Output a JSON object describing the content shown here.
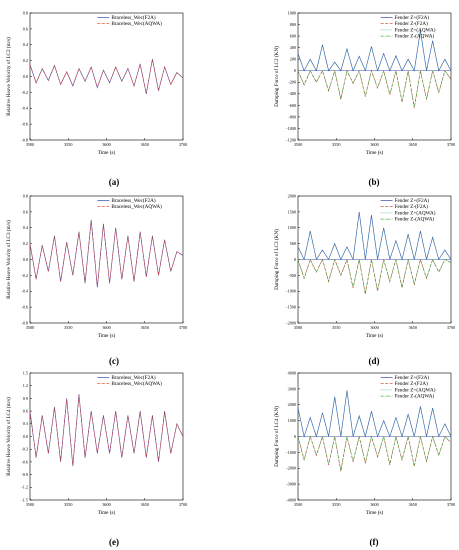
{
  "figure": {
    "panels": [
      {
        "id": "a",
        "label": "(a)"
      },
      {
        "id": "b",
        "label": "(b)"
      },
      {
        "id": "c",
        "label": "(c)"
      },
      {
        "id": "d",
        "label": "(d)"
      },
      {
        "id": "e",
        "label": "(e)"
      },
      {
        "id": "f",
        "label": "(f)"
      }
    ]
  },
  "chart_data": [
    {
      "id": "a",
      "type": "line",
      "xlabel": "Time (s)",
      "ylabel": "Relative Heave Velocity of LC2 (m/s)",
      "xlim": [
        3500,
        3700
      ],
      "ylim": [
        -0.8,
        0.8
      ],
      "xticks": [
        3500,
        3550,
        3600,
        3650,
        3700
      ],
      "yticks": [
        -0.8,
        -0.6,
        -0.4,
        -0.2,
        0.0,
        0.2,
        0.4,
        0.6,
        0.8
      ],
      "ytick_labels": [
        "-0.8",
        "-0.6",
        "-0.4",
        "-0.2",
        "0.0",
        "0.2",
        "0.4",
        "0.6",
        "0.8"
      ],
      "legend_position": "top-right",
      "grid": false,
      "series": [
        {
          "name": "Braceless_Wec(F2A)",
          "color": "#3a4aa8",
          "style": "solid"
        },
        {
          "name": "Braceless_Wec(AQWA)",
          "color": "#d13a3a",
          "style": "dashed"
        }
      ],
      "x": [
        3500,
        3508,
        3516,
        3524,
        3532,
        3540,
        3548,
        3556,
        3564,
        3572,
        3580,
        3588,
        3596,
        3604,
        3612,
        3620,
        3628,
        3636,
        3644,
        3652,
        3660,
        3668,
        3676,
        3684,
        3692,
        3700
      ],
      "y": [
        0.15,
        -0.08,
        0.1,
        -0.05,
        0.14,
        -0.1,
        0.06,
        -0.12,
        0.1,
        -0.06,
        0.12,
        -0.14,
        0.08,
        -0.08,
        0.12,
        -0.06,
        0.1,
        -0.12,
        0.16,
        -0.22,
        0.22,
        -0.18,
        0.12,
        -0.1,
        0.05,
        -0.02
      ]
    },
    {
      "id": "b",
      "type": "line",
      "xlabel": "Time (s)",
      "ylabel": "Damping Force of LC2 (KN)",
      "xlim": [
        3500,
        3700
      ],
      "ylim": [
        -1200,
        1000
      ],
      "xticks": [
        3500,
        3550,
        3600,
        3650,
        3700
      ],
      "yticks": [
        -1200,
        -1000,
        -800,
        -600,
        -400,
        -200,
        0,
        200,
        400,
        600,
        800,
        1000
      ],
      "ytick_labels": [
        "-1200",
        "-1000",
        "-800",
        "-600",
        "-400",
        "-200",
        "0",
        "200",
        "400",
        "600",
        "800",
        "1000"
      ],
      "legend_position": "top-right",
      "grid": false,
      "series": [
        {
          "name": "Fender Z+(F2A)",
          "color": "#3a4aa8",
          "style": "solid"
        },
        {
          "name": "Fender Z-(F2A)",
          "color": "#d13a3a",
          "style": "dashed"
        },
        {
          "name": "Fender Z+(AQWA)",
          "color": "#2aa0a0",
          "style": "dotted"
        },
        {
          "name": "Fender Z-(AQWA)",
          "color": "#3aa83a",
          "style": "dashdot"
        }
      ],
      "x": [
        3500,
        3508,
        3516,
        3524,
        3532,
        3540,
        3548,
        3556,
        3564,
        3572,
        3580,
        3588,
        3596,
        3604,
        3612,
        3620,
        3628,
        3636,
        3644,
        3652,
        3660,
        3668,
        3676,
        3684,
        3692,
        3700
      ],
      "y_pos": [
        300,
        0,
        200,
        0,
        450,
        0,
        150,
        0,
        380,
        0,
        250,
        0,
        420,
        0,
        300,
        0,
        260,
        0,
        200,
        0,
        700,
        0,
        520,
        0,
        200,
        0
      ],
      "y_neg": [
        0,
        -250,
        0,
        -200,
        0,
        -350,
        0,
        -500,
        0,
        -220,
        0,
        -450,
        0,
        -300,
        0,
        -420,
        0,
        -550,
        0,
        -650,
        0,
        -500,
        0,
        -380,
        0,
        -150
      ]
    },
    {
      "id": "c",
      "type": "line",
      "xlabel": "Time (s)",
      "ylabel": "Relative Heave Velocity of LC3 (m/s)",
      "xlim": [
        3500,
        3700
      ],
      "ylim": [
        -0.8,
        0.8
      ],
      "xticks": [
        3500,
        3550,
        3600,
        3650,
        3700
      ],
      "yticks": [
        -0.8,
        -0.6,
        -0.4,
        -0.2,
        0.0,
        0.2,
        0.4,
        0.6,
        0.8
      ],
      "ytick_labels": [
        "-0.8",
        "-0.6",
        "-0.4",
        "-0.2",
        "0.0",
        "0.2",
        "0.4",
        "0.6",
        "0.8"
      ],
      "legend_position": "top-right",
      "grid": false,
      "series": [
        {
          "name": "Braceless_Wec(F2A)",
          "color": "#3a4aa8",
          "style": "solid"
        },
        {
          "name": "Braceless_Wec(AQWA)",
          "color": "#d13a3a",
          "style": "dashed"
        }
      ],
      "x": [
        3500,
        3508,
        3516,
        3524,
        3532,
        3540,
        3548,
        3556,
        3564,
        3572,
        3580,
        3588,
        3596,
        3604,
        3612,
        3620,
        3628,
        3636,
        3644,
        3652,
        3660,
        3668,
        3676,
        3684,
        3692,
        3700
      ],
      "y": [
        0.2,
        -0.25,
        0.18,
        -0.15,
        0.3,
        -0.28,
        0.22,
        -0.2,
        0.35,
        -0.3,
        0.5,
        -0.35,
        0.45,
        -0.3,
        0.4,
        -0.25,
        0.3,
        -0.28,
        0.35,
        -0.22,
        0.3,
        -0.2,
        0.25,
        -0.15,
        0.1,
        0.05
      ]
    },
    {
      "id": "d",
      "type": "line",
      "xlabel": "Time (s)",
      "ylabel": "Damping Force of LC3 (KN)",
      "xlim": [
        3500,
        3700
      ],
      "ylim": [
        -2000,
        2000
      ],
      "xticks": [
        3500,
        3550,
        3600,
        3650,
        3700
      ],
      "yticks": [
        -2000,
        -1500,
        -1000,
        -500,
        0,
        500,
        1000,
        1500,
        2000
      ],
      "ytick_labels": [
        "-2000",
        "-1500",
        "-1000",
        "-500",
        "0",
        "500",
        "1000",
        "1500",
        "2000"
      ],
      "legend_position": "top-right",
      "grid": false,
      "series": [
        {
          "name": "Fender Z+(F2A)",
          "color": "#3a4aa8",
          "style": "solid"
        },
        {
          "name": "Fender Z-(F2A)",
          "color": "#d13a3a",
          "style": "dashed"
        },
        {
          "name": "Fender Z+(AQWA)",
          "color": "#2aa0a0",
          "style": "dotted"
        },
        {
          "name": "Fender Z-(AQWA)",
          "color": "#3aa83a",
          "style": "dashdot"
        }
      ],
      "x": [
        3500,
        3508,
        3516,
        3524,
        3532,
        3540,
        3548,
        3556,
        3564,
        3572,
        3580,
        3588,
        3596,
        3604,
        3612,
        3620,
        3628,
        3636,
        3644,
        3652,
        3660,
        3668,
        3676,
        3684,
        3692,
        3700
      ],
      "y_pos": [
        400,
        0,
        900,
        0,
        300,
        0,
        500,
        0,
        400,
        0,
        1500,
        0,
        1400,
        0,
        1000,
        0,
        600,
        0,
        800,
        0,
        900,
        0,
        700,
        0,
        300,
        0
      ],
      "y_neg": [
        0,
        -600,
        0,
        -400,
        0,
        -700,
        0,
        -500,
        0,
        -900,
        0,
        -1100,
        0,
        -1000,
        0,
        -700,
        0,
        -900,
        0,
        -800,
        0,
        -600,
        0,
        -400,
        0,
        -100
      ]
    },
    {
      "id": "e",
      "type": "line",
      "xlabel": "Time (s)",
      "ylabel": "Relative Heave Velocity of LC4 (m/s)",
      "xlim": [
        3500,
        3700
      ],
      "ylim": [
        -1.5,
        1.5
      ],
      "xticks": [
        3500,
        3550,
        3600,
        3650,
        3700
      ],
      "yticks": [
        -1.5,
        -1.2,
        -0.9,
        -0.6,
        -0.3,
        0.0,
        0.3,
        0.6,
        0.9,
        1.2,
        1.5
      ],
      "ytick_labels": [
        "-1.5",
        "-1.2",
        "-0.9",
        "-0.6",
        "-0.3",
        "0.0",
        "0.3",
        "0.6",
        "0.9",
        "1.2",
        "1.5"
      ],
      "legend_position": "top-right",
      "grid": false,
      "series": [
        {
          "name": "Braceless_Wec(F2A)",
          "color": "#3a4aa8",
          "style": "solid"
        },
        {
          "name": "Braceless_Wec(AQWA)",
          "color": "#d13a3a",
          "style": "dashed"
        }
      ],
      "x": [
        3500,
        3508,
        3516,
        3524,
        3532,
        3540,
        3548,
        3556,
        3564,
        3572,
        3580,
        3588,
        3596,
        3604,
        3612,
        3620,
        3628,
        3636,
        3644,
        3652,
        3660,
        3668,
        3676,
        3684,
        3692,
        3700
      ],
      "y": [
        0.6,
        -0.5,
        0.5,
        -0.4,
        0.7,
        -0.6,
        0.9,
        -0.7,
        1.0,
        -0.5,
        0.6,
        -0.4,
        0.5,
        -0.4,
        0.6,
        -0.5,
        0.5,
        -0.4,
        0.6,
        -0.5,
        0.5,
        -0.6,
        0.6,
        -0.4,
        0.3,
        0.0
      ]
    },
    {
      "id": "f",
      "type": "line",
      "xlabel": "Time (s)",
      "ylabel": "Damping Force of LC4 (KN)",
      "xlim": [
        3500,
        3700
      ],
      "ylim": [
        -4000,
        4000
      ],
      "xticks": [
        3500,
        3550,
        3600,
        3650,
        3700
      ],
      "yticks": [
        -4000,
        -3000,
        -2000,
        -1000,
        0,
        1000,
        2000,
        3000,
        4000
      ],
      "ytick_labels": [
        "-4000",
        "-3000",
        "-2000",
        "-1000",
        "0",
        "1000",
        "2000",
        "3000",
        "4000"
      ],
      "legend_position": "top-right",
      "grid": false,
      "series": [
        {
          "name": "Fender Z+(F2A)",
          "color": "#3a4aa8",
          "style": "solid"
        },
        {
          "name": "Fender Z-(F2A)",
          "color": "#d13a3a",
          "style": "dashed"
        },
        {
          "name": "Fender Z+(AQWA)",
          "color": "#2aa0a0",
          "style": "dotted"
        },
        {
          "name": "Fender Z-(AQWA)",
          "color": "#3aa83a",
          "style": "dashdot"
        }
      ],
      "x": [
        3500,
        3508,
        3516,
        3524,
        3532,
        3540,
        3548,
        3556,
        3564,
        3572,
        3580,
        3588,
        3596,
        3604,
        3612,
        3620,
        3628,
        3636,
        3644,
        3652,
        3660,
        3668,
        3676,
        3684,
        3692,
        3700
      ],
      "y_pos": [
        1800,
        0,
        1200,
        0,
        1500,
        0,
        2500,
        0,
        2900,
        0,
        1300,
        0,
        1600,
        0,
        1000,
        0,
        1200,
        0,
        1400,
        0,
        1900,
        0,
        1800,
        0,
        800,
        0
      ],
      "y_neg": [
        0,
        -1500,
        0,
        -1200,
        0,
        -1800,
        0,
        -2200,
        0,
        -1600,
        0,
        -1700,
        0,
        -1300,
        0,
        -1800,
        0,
        -1500,
        0,
        -1900,
        0,
        -1600,
        0,
        -1200,
        0,
        -400
      ]
    }
  ]
}
